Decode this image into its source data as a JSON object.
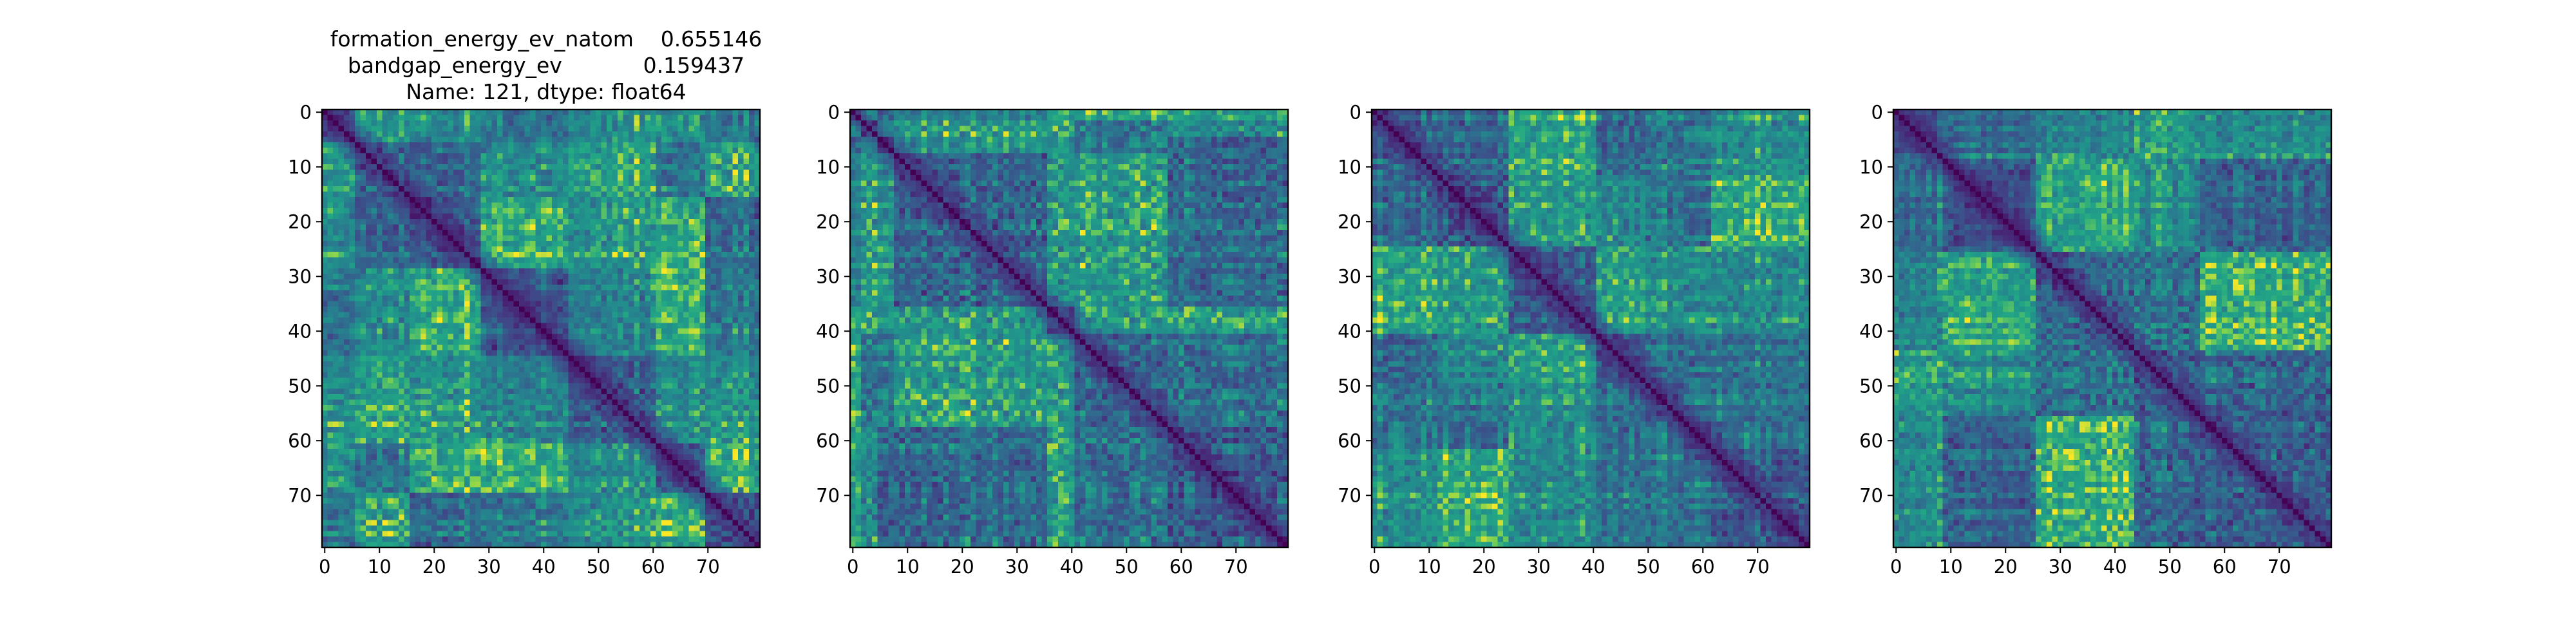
{
  "figure": {
    "title_lines": [
      "formation_energy_ev_natom    0.655146",
      "bandgap_energy_ev            0.159437",
      "Name: 121, dtype: float64"
    ]
  },
  "chart_data": [
    {
      "type": "heatmap",
      "title": "",
      "xlabel": "",
      "ylabel": "",
      "size": [
        80,
        80
      ],
      "seed": 11,
      "blocks": [
        0,
        6,
        16,
        29,
        45,
        61,
        70,
        80
      ],
      "colormap": "viridis",
      "value_range": [
        0,
        1
      ],
      "diagonal_value": 0,
      "xlim": [
        0,
        79
      ],
      "ylim": [
        79,
        0
      ],
      "xticks": [
        0,
        10,
        20,
        30,
        40,
        50,
        60,
        70
      ],
      "yticks": [
        0,
        10,
        20,
        30,
        40,
        50,
        60,
        70
      ],
      "grid": false
    },
    {
      "type": "heatmap",
      "title": "",
      "xlabel": "",
      "ylabel": "",
      "size": [
        80,
        80
      ],
      "seed": 23,
      "blocks": [
        0,
        2,
        5,
        8,
        36,
        41,
        58,
        80
      ],
      "colormap": "viridis",
      "value_range": [
        0,
        1
      ],
      "diagonal_value": 0,
      "xlim": [
        0,
        79
      ],
      "ylim": [
        79,
        0
      ],
      "xticks": [
        0,
        10,
        20,
        30,
        40,
        50,
        60,
        70
      ],
      "yticks": [
        0,
        10,
        20,
        30,
        40,
        50,
        60,
        70
      ],
      "grid": false
    },
    {
      "type": "heatmap",
      "title": "",
      "xlabel": "",
      "ylabel": "",
      "size": [
        80,
        80
      ],
      "seed": 37,
      "blocks": [
        0,
        12,
        25,
        41,
        50,
        62,
        80
      ],
      "colormap": "viridis",
      "value_range": [
        0,
        1
      ],
      "diagonal_value": 0,
      "xlim": [
        0,
        79
      ],
      "ylim": [
        79,
        0
      ],
      "xticks": [
        0,
        10,
        20,
        30,
        40,
        50,
        60,
        70
      ],
      "yticks": [
        0,
        10,
        20,
        30,
        40,
        50,
        60,
        70
      ],
      "grid": false
    },
    {
      "type": "heatmap",
      "title": "",
      "xlabel": "",
      "ylabel": "",
      "size": [
        80,
        80
      ],
      "seed": 51,
      "blocks": [
        0,
        9,
        26,
        44,
        56,
        80
      ],
      "colormap": "viridis",
      "value_range": [
        0,
        1
      ],
      "diagonal_value": 0,
      "xlim": [
        0,
        79
      ],
      "ylim": [
        79,
        0
      ],
      "xticks": [
        0,
        10,
        20,
        30,
        40,
        50,
        60,
        70
      ],
      "yticks": [
        0,
        10,
        20,
        30,
        40,
        50,
        60,
        70
      ],
      "grid": false
    }
  ]
}
